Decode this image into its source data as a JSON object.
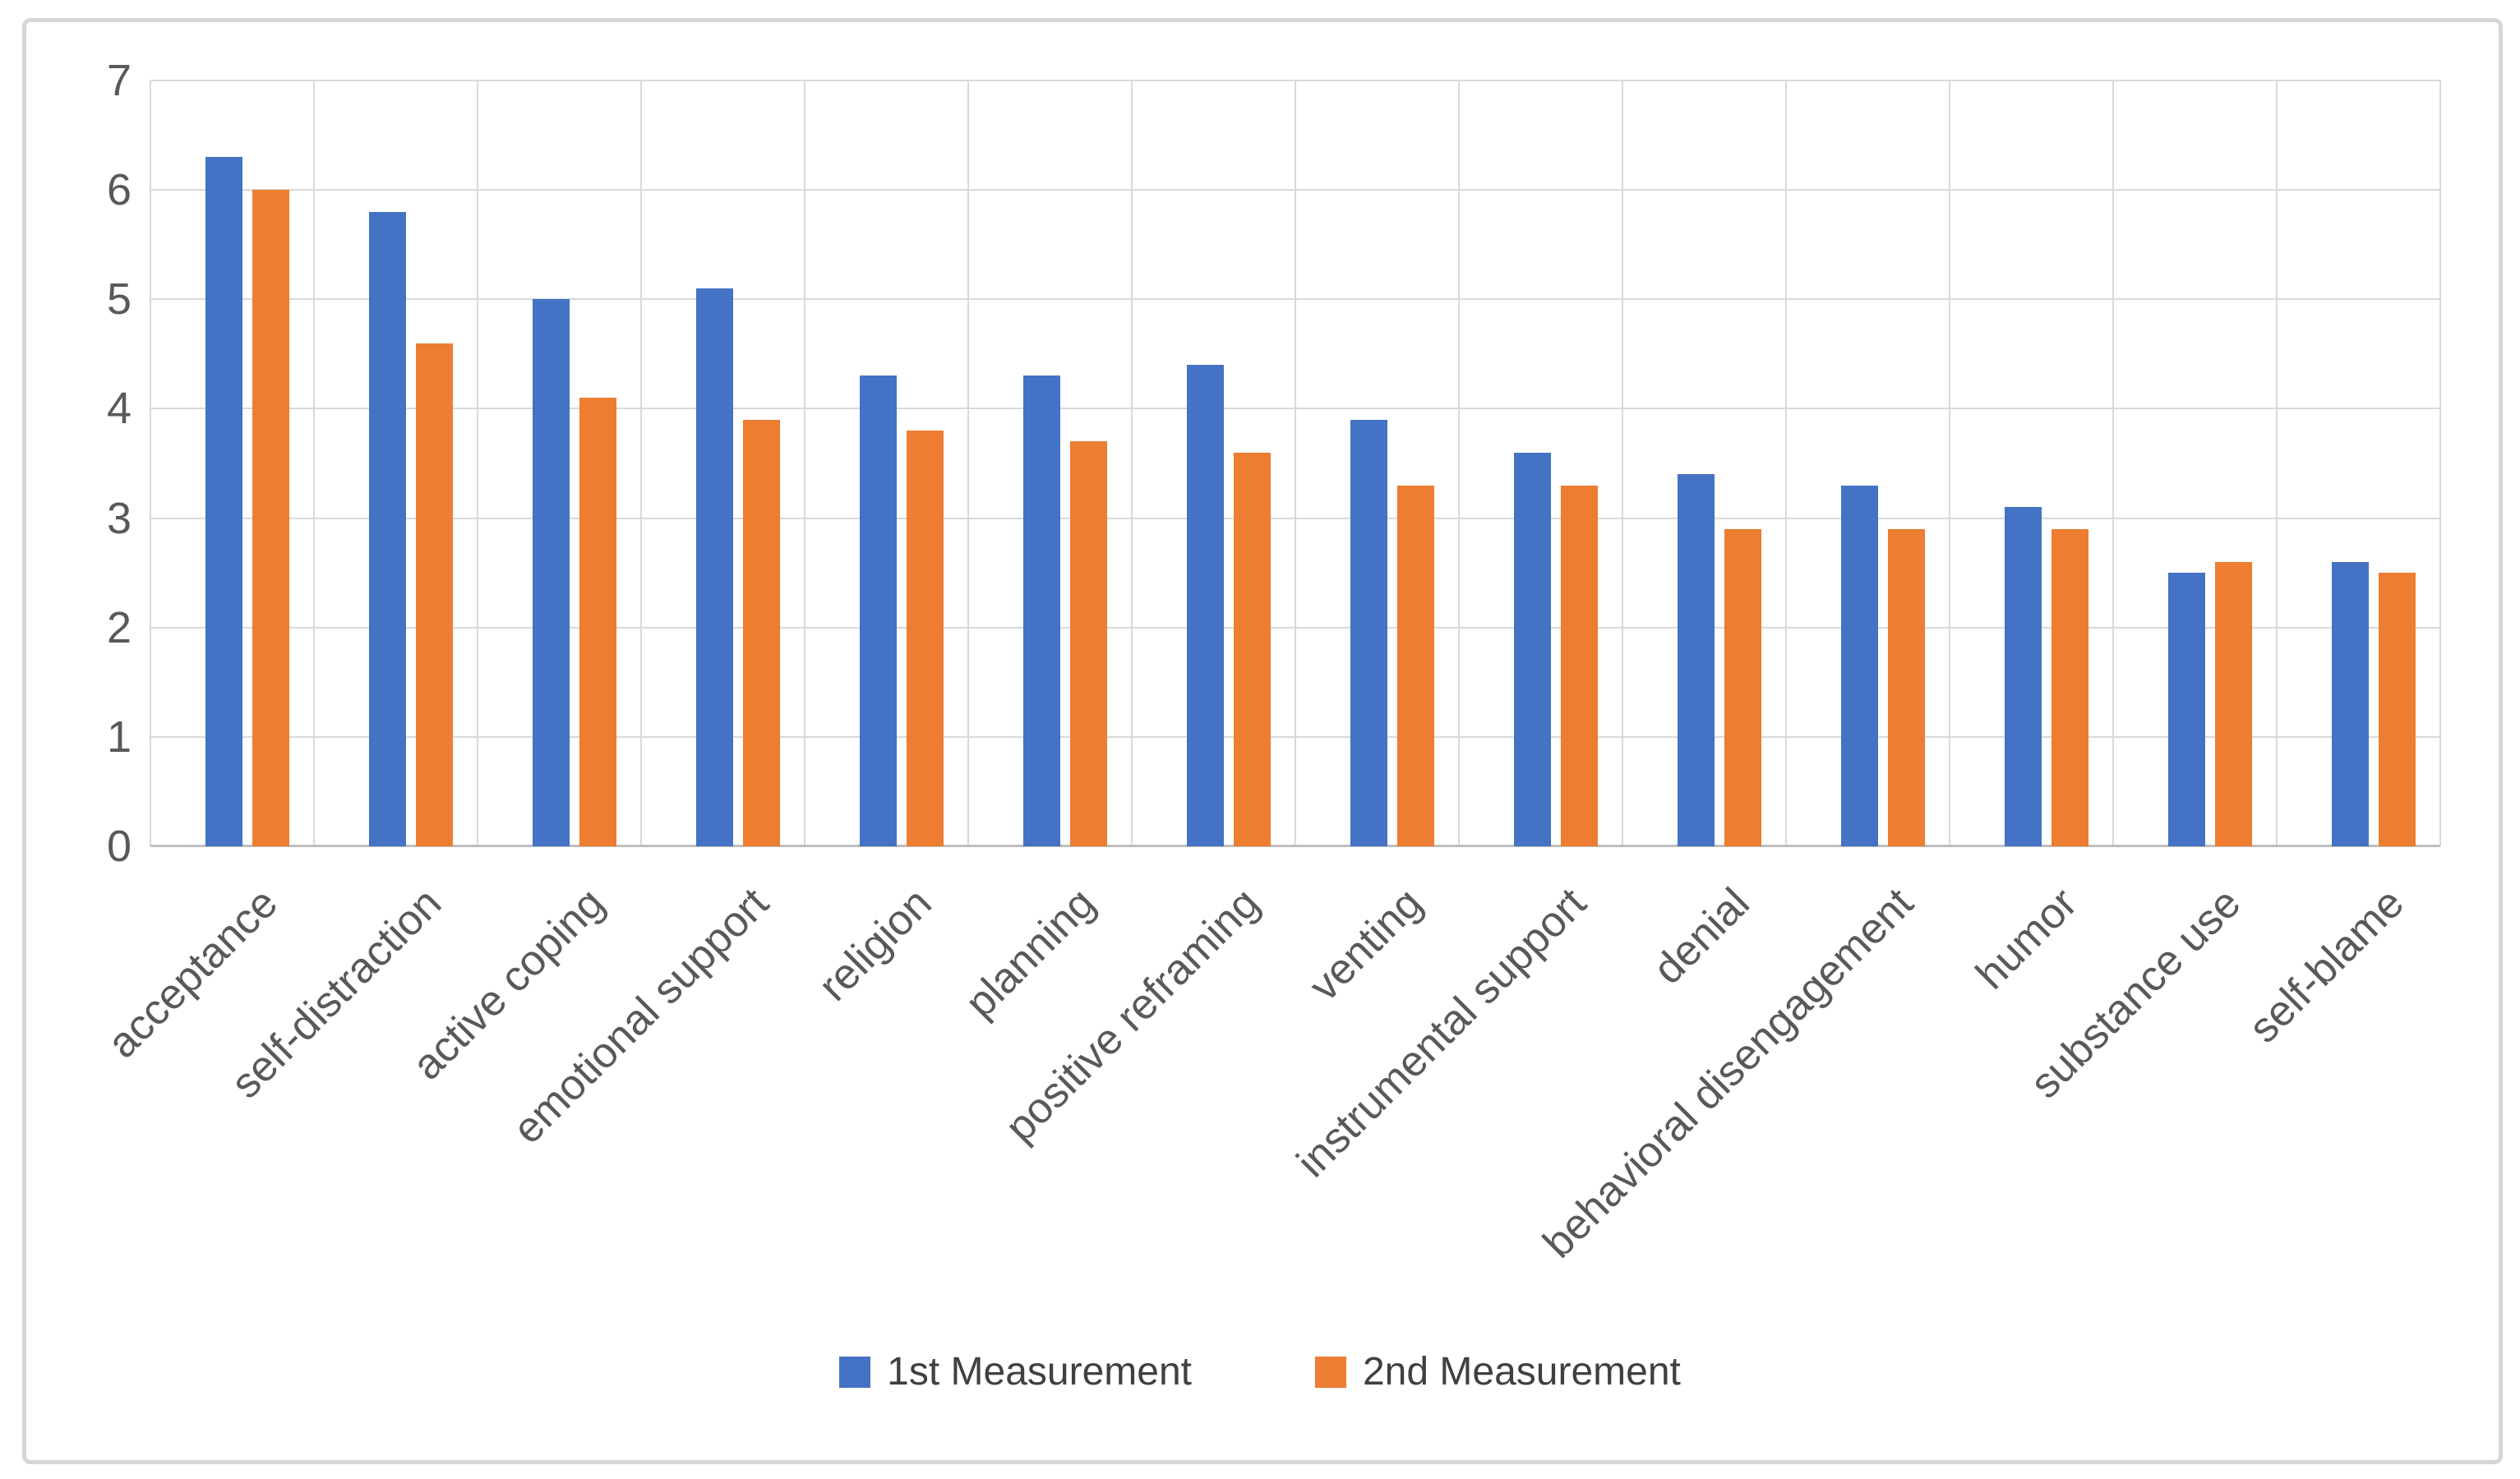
{
  "figure": {
    "background": "#ffffff",
    "frame_border_color": "#d6d6d6"
  },
  "chart_data": {
    "type": "bar",
    "title": "",
    "xlabel": "",
    "ylabel": "",
    "categories": [
      "acceptance",
      "self-distraction",
      "active coping",
      "emotional support",
      "religion",
      "planning",
      "positive reframing",
      "venting",
      "instrumental support",
      "denial",
      "behavioral disengagement",
      "humor",
      "substance use",
      "self-blame"
    ],
    "series": [
      {
        "name": "1st Measurement",
        "color": "#4472C4",
        "values": [
          6.3,
          5.8,
          5.0,
          5.1,
          4.3,
          4.3,
          4.4,
          3.9,
          3.6,
          3.4,
          3.3,
          3.1,
          2.5,
          2.6
        ]
      },
      {
        "name": "2nd Measurement",
        "color": "#ED7D31",
        "values": [
          6.0,
          4.6,
          4.1,
          3.9,
          3.8,
          3.7,
          3.6,
          3.3,
          3.3,
          2.9,
          2.9,
          2.9,
          2.6,
          2.5
        ]
      }
    ],
    "ylim": [
      0,
      7
    ],
    "yticks": [
      0,
      1,
      2,
      3,
      4,
      5,
      6,
      7
    ],
    "grid": "horizontal and vertical gridlines on",
    "gridline_color": "#d9d9d9",
    "axis_line_color": "#bfbfbf",
    "tick_label_color": "#595959",
    "legend_position": "bottom-center",
    "x_label_rotation_deg": 45
  },
  "legend": {
    "items": [
      {
        "label": "1st Measurement",
        "color": "#4472C4"
      },
      {
        "label": "2nd Measurement",
        "color": "#ED7D31"
      }
    ]
  }
}
